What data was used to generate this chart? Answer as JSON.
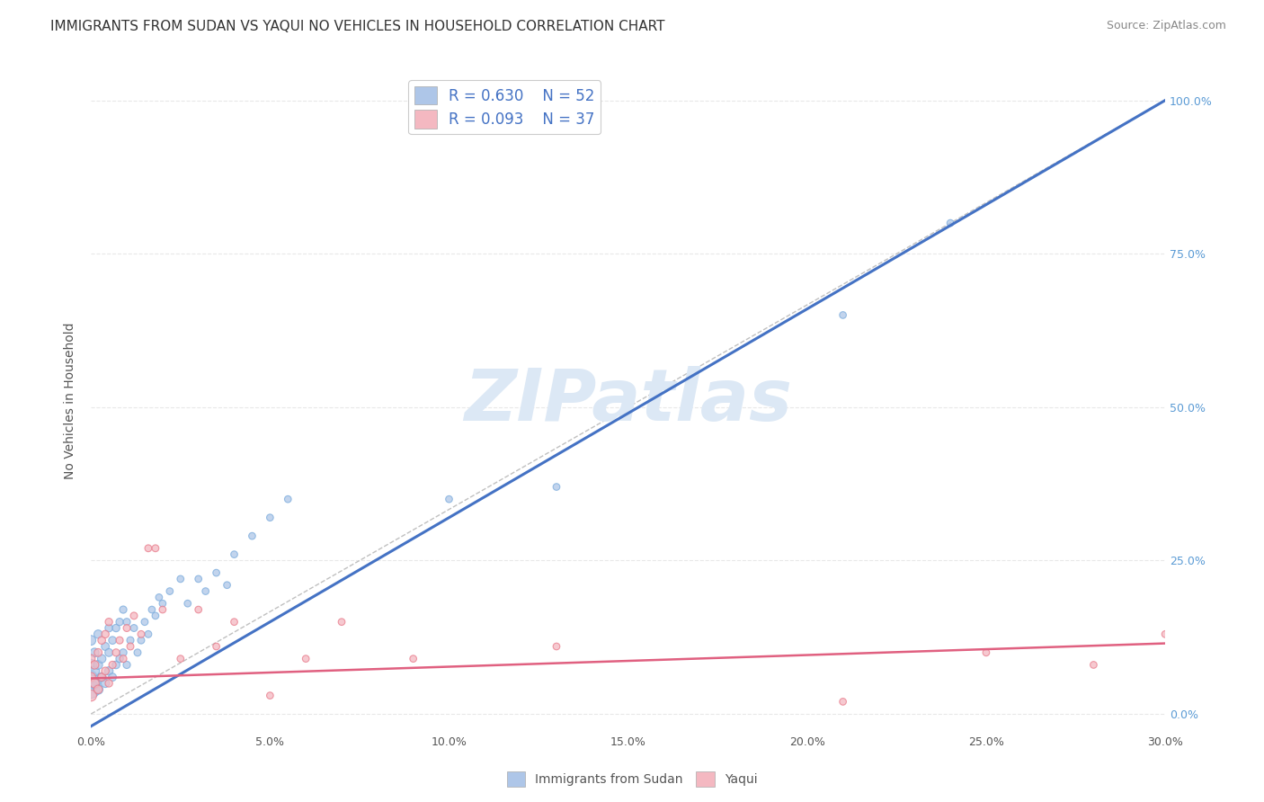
{
  "title": "IMMIGRANTS FROM SUDAN VS YAQUI NO VEHICLES IN HOUSEHOLD CORRELATION CHART",
  "source": "Source: ZipAtlas.com",
  "ylabel_label": "No Vehicles in Household",
  "xlim": [
    0.0,
    0.3
  ],
  "ylim": [
    0.0,
    1.05
  ],
  "legend_entries": [
    {
      "label": "Immigrants from Sudan",
      "color": "#aec6e8",
      "R": "0.630",
      "N": "52"
    },
    {
      "label": "Yaqui",
      "color": "#f4b8c1",
      "R": "0.093",
      "N": "37"
    }
  ],
  "watermark": "ZIPatlas",
  "sudan_scatter": {
    "x": [
      0.0,
      0.0,
      0.0,
      0.0,
      0.001,
      0.001,
      0.001,
      0.002,
      0.002,
      0.002,
      0.003,
      0.003,
      0.004,
      0.004,
      0.005,
      0.005,
      0.005,
      0.006,
      0.006,
      0.007,
      0.007,
      0.008,
      0.008,
      0.009,
      0.009,
      0.01,
      0.01,
      0.011,
      0.012,
      0.013,
      0.014,
      0.015,
      0.016,
      0.017,
      0.018,
      0.019,
      0.02,
      0.022,
      0.025,
      0.027,
      0.03,
      0.032,
      0.035,
      0.038,
      0.04,
      0.045,
      0.05,
      0.055,
      0.1,
      0.13,
      0.21,
      0.24
    ],
    "y": [
      0.04,
      0.06,
      0.08,
      0.12,
      0.05,
      0.07,
      0.1,
      0.04,
      0.08,
      0.13,
      0.06,
      0.09,
      0.05,
      0.11,
      0.07,
      0.1,
      0.14,
      0.06,
      0.12,
      0.08,
      0.14,
      0.09,
      0.15,
      0.1,
      0.17,
      0.08,
      0.15,
      0.12,
      0.14,
      0.1,
      0.12,
      0.15,
      0.13,
      0.17,
      0.16,
      0.19,
      0.18,
      0.2,
      0.22,
      0.18,
      0.22,
      0.2,
      0.23,
      0.21,
      0.26,
      0.29,
      0.32,
      0.35,
      0.35,
      0.37,
      0.65,
      0.8
    ],
    "sizes": [
      200,
      100,
      80,
      60,
      80,
      60,
      50,
      60,
      50,
      45,
      50,
      45,
      45,
      40,
      45,
      40,
      38,
      40,
      38,
      38,
      36,
      36,
      35,
      35,
      34,
      34,
      33,
      33,
      32,
      32,
      32,
      31,
      31,
      30,
      30,
      30,
      30,
      30,
      30,
      30,
      30,
      30,
      30,
      30,
      30,
      30,
      30,
      30,
      30,
      30,
      30,
      30
    ],
    "color": "#aec6e8",
    "edgecolor": "#7aabdc"
  },
  "yaqui_scatter": {
    "x": [
      0.0,
      0.0,
      0.0,
      0.001,
      0.001,
      0.002,
      0.002,
      0.003,
      0.003,
      0.004,
      0.004,
      0.005,
      0.005,
      0.006,
      0.007,
      0.008,
      0.009,
      0.01,
      0.011,
      0.012,
      0.014,
      0.016,
      0.018,
      0.02,
      0.025,
      0.03,
      0.035,
      0.04,
      0.05,
      0.06,
      0.07,
      0.09,
      0.13,
      0.21,
      0.25,
      0.28,
      0.3
    ],
    "y": [
      0.03,
      0.06,
      0.09,
      0.05,
      0.08,
      0.04,
      0.1,
      0.06,
      0.12,
      0.07,
      0.13,
      0.05,
      0.15,
      0.08,
      0.1,
      0.12,
      0.09,
      0.14,
      0.11,
      0.16,
      0.13,
      0.27,
      0.27,
      0.17,
      0.09,
      0.17,
      0.11,
      0.15,
      0.03,
      0.09,
      0.15,
      0.09,
      0.11,
      0.02,
      0.1,
      0.08,
      0.13
    ],
    "sizes": [
      80,
      55,
      45,
      55,
      45,
      45,
      40,
      40,
      38,
      38,
      36,
      36,
      35,
      34,
      34,
      33,
      33,
      32,
      32,
      32,
      31,
      31,
      31,
      30,
      30,
      30,
      30,
      30,
      30,
      30,
      30,
      30,
      30,
      30,
      30,
      30,
      30
    ],
    "color": "#f4b8c1",
    "edgecolor": "#e87a8a"
  },
  "sudan_trendline": {
    "x": [
      0.0,
      0.3
    ],
    "y": [
      -0.02,
      1.0
    ],
    "color": "#4472c4",
    "linewidth": 2.2
  },
  "yaqui_trendline": {
    "x": [
      0.0,
      0.3
    ],
    "y": [
      0.058,
      0.115
    ],
    "color": "#e06080",
    "linewidth": 1.8
  },
  "diagonal_line": {
    "x": [
      0.0,
      0.3
    ],
    "y": [
      0.0,
      1.0
    ],
    "color": "#c0c0c0",
    "linewidth": 1.0,
    "linestyle": "--"
  },
  "grid_color": "#e8e8e8",
  "background_color": "#ffffff",
  "title_fontsize": 11,
  "axis_label_fontsize": 10,
  "tick_fontsize": 9,
  "legend_fontsize": 12,
  "source_fontsize": 9,
  "watermark_color": "#dce8f5",
  "watermark_fontsize": 58
}
